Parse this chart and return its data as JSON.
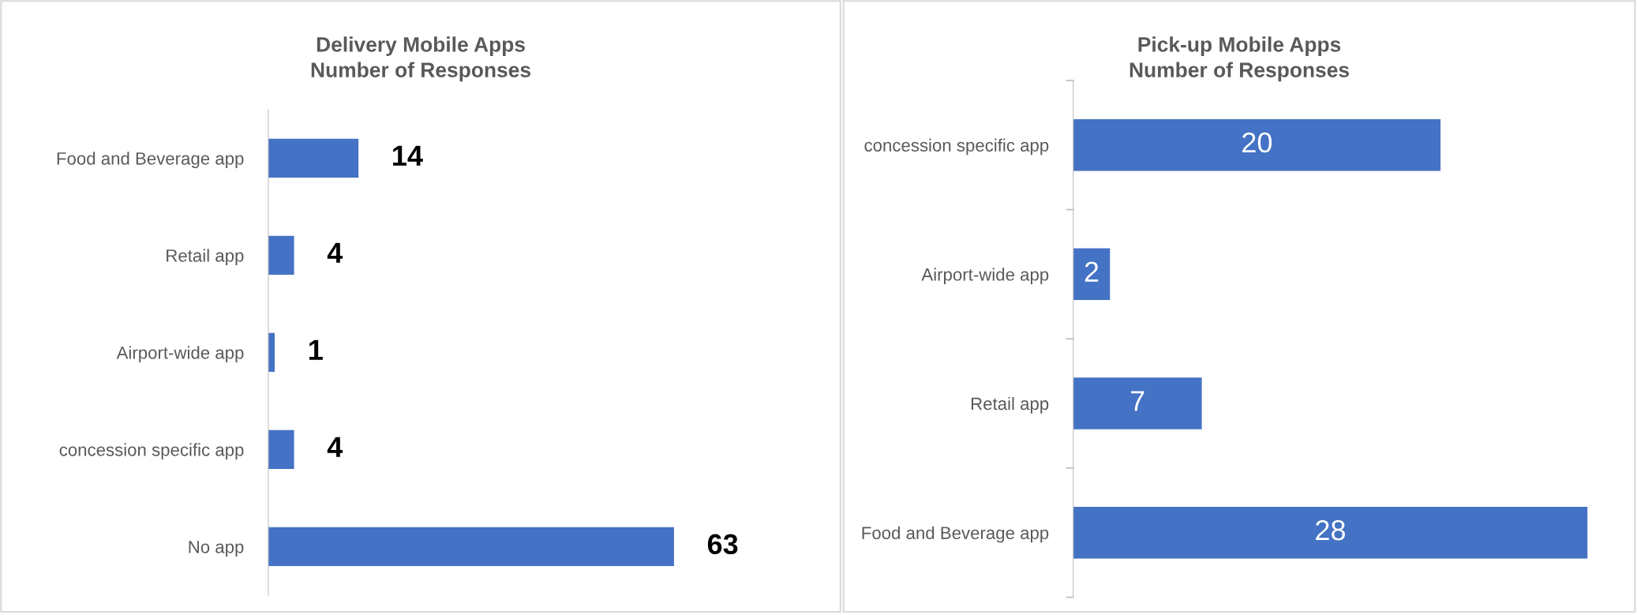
{
  "chart_data": [
    {
      "type": "bar",
      "orientation": "horizontal",
      "title": "Delivery Mobile Apps\nNumber of Responses",
      "categories": [
        "Food and Beverage app",
        "Retail app",
        "Airport-wide app",
        "concession specific app",
        "No app"
      ],
      "values": [
        14,
        4,
        1,
        4,
        63
      ],
      "color": "#4472c4",
      "data_labels": true,
      "relative": false
    },
    {
      "type": "bar",
      "orientation": "horizontal",
      "title": "Pick-up Mobile Apps\nNumber of Responses",
      "categories": [
        "concession specific app",
        "Airport-wide app",
        "Retail app",
        "Food and Beverage app"
      ],
      "values": [
        20,
        2,
        7,
        28
      ],
      "color": "#4472c4",
      "data_labels": true,
      "relative": false
    }
  ]
}
